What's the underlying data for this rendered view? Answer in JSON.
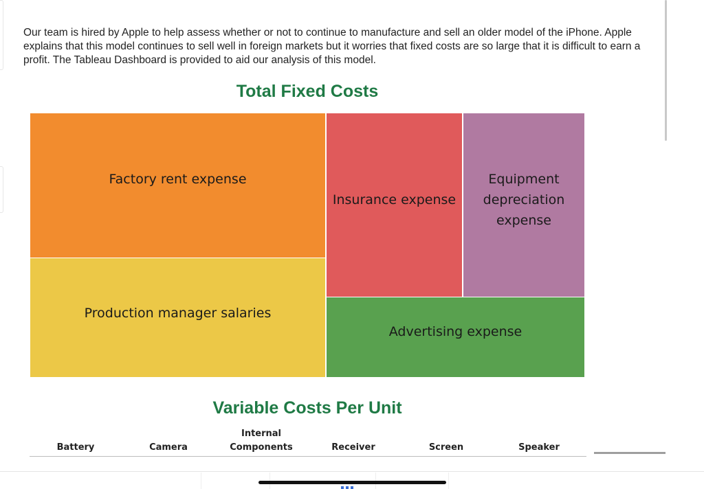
{
  "intro_text": "Our team is hired by Apple to help assess whether or not to continue to manufacture and sell an older model of the iPhone. Apple explains that this model continues to sell well in foreign markets but it worries that fixed costs are so large that it is difficult to earn a profit. The Tableau Dashboard is provided to aid our analysis of this model.",
  "chart_data": [
    {
      "type": "treemap",
      "title": "Total Fixed Costs",
      "tiles": [
        {
          "label": "Factory rent expense",
          "color": "#f28c2e"
        },
        {
          "label": "Production manager salaries",
          "color": "#ecc847"
        },
        {
          "label": "Insurance expense",
          "color": "#e05a5b"
        },
        {
          "label": "Equipment depreciation expense",
          "color": "#b07aa1"
        },
        {
          "label": "Advertising expense",
          "color": "#59a14f"
        }
      ]
    },
    {
      "type": "table",
      "title": "Variable Costs Per Unit",
      "columns": [
        "Battery",
        "Camera",
        "Internal\nComponents",
        "Receiver",
        "Screen",
        "Speaker"
      ]
    }
  ]
}
